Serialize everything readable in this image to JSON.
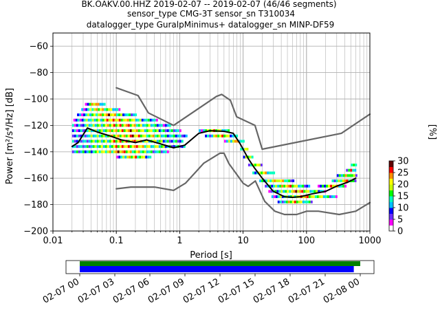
{
  "title_lines": [
    "BK.OAKV.00.HHZ   2019-02-07 -- 2019-02-07  (46/46 segments)",
    "sensor_type CMG-3T sensor_sn T310034",
    "datalogger_type GuralpMinimus+ datalogger_sn MINP-DF59"
  ],
  "chart_data": {
    "type": "heatmap",
    "xlabel": "Period [s]",
    "ylabel": "Power [m²/s⁴/Hz] [dB]",
    "x_scale": "log",
    "xlim": [
      0.01,
      1000
    ],
    "ylim": [
      -200,
      -50
    ],
    "x_tick_labels": [
      "0.01",
      "0.1",
      "1",
      "10",
      "100",
      "1000"
    ],
    "y_ticks": [
      -200,
      -180,
      -160,
      -140,
      -120,
      -100,
      -80,
      -60
    ],
    "grid": true,
    "colorbar": {
      "label": "[%]",
      "range": [
        0,
        30
      ],
      "ticks": [
        0,
        5,
        10,
        15,
        20,
        25,
        30
      ],
      "colors": [
        "#ffffff",
        "#ff00ff",
        "#6d2dff",
        "#0000ff",
        "#00bfff",
        "#00ffc0",
        "#00ff00",
        "#c8ff00",
        "#ffff00",
        "#ff9000",
        "#ff0000",
        "#600000"
      ]
    },
    "series": [
      {
        "role": "noise-model-high",
        "color": "#666666",
        "x": [
          0.1,
          0.22,
          0.32,
          0.8,
          3.8,
          4.6,
          6.3,
          7.9,
          15.4,
          20,
          354.8,
          1000
        ],
        "y": [
          -91.5,
          -97.4,
          -110.5,
          -120,
          -98,
          -96.5,
          -101,
          -113.5,
          -120,
          -138,
          -126,
          -111.5
        ]
      },
      {
        "role": "noise-model-low",
        "color": "#666666",
        "x": [
          0.1,
          0.17,
          0.4,
          0.8,
          1.24,
          2.4,
          4.3,
          5,
          6,
          10,
          12,
          15.6,
          21.9,
          31.6,
          45,
          70,
          101,
          154,
          328,
          600,
          1000
        ],
        "y": [
          -168,
          -166.7,
          -166.7,
          -169.2,
          -163.7,
          -148.6,
          -141.1,
          -141.1,
          -149,
          -163.8,
          -166.2,
          -162.1,
          -177.5,
          -185,
          -187.5,
          -187.5,
          -185,
          -185,
          -187.5,
          -185,
          -178.5
        ]
      },
      {
        "role": "mode",
        "color": "#000000",
        "x": [
          0.02,
          0.025,
          0.03,
          0.035,
          0.05,
          0.08,
          0.12,
          0.2,
          0.3,
          0.5,
          0.8,
          1.2,
          2,
          3,
          5,
          7,
          9,
          12,
          15,
          20,
          30,
          45,
          60,
          80,
          120,
          200,
          300,
          450,
          600
        ],
        "y": [
          -136,
          -133,
          -127,
          -122,
          -125,
          -128,
          -131,
          -133,
          -131,
          -134,
          -137,
          -135,
          -126,
          -124,
          -124.5,
          -126,
          -134,
          -145,
          -152,
          -160,
          -170,
          -174,
          -174.5,
          -174,
          -172,
          -170,
          -166,
          -163,
          -160
        ]
      }
    ],
    "heatmap_rows": [
      {
        "y": -104,
        "x": [
          0.032,
          0.065
        ]
      },
      {
        "y": -108,
        "x": [
          0.028,
          0.11
        ]
      },
      {
        "y": -112,
        "x": [
          0.024,
          0.2
        ]
      },
      {
        "y": -116,
        "x": [
          0.021,
          0.45
        ]
      },
      {
        "y": -120,
        "x": [
          0.02,
          0.7
        ]
      },
      {
        "y": -124,
        "x": [
          0.02,
          1.0
        ]
      },
      {
        "y": -128,
        "x": [
          0.02,
          1.3
        ]
      },
      {
        "y": -132,
        "x": [
          0.02,
          1.1
        ]
      },
      {
        "y": -136,
        "x": [
          0.02,
          1.2
        ]
      },
      {
        "y": -140,
        "x": [
          0.02,
          0.65
        ]
      },
      {
        "y": -144,
        "x": [
          0.1,
          0.35
        ]
      },
      {
        "y": -124,
        "x": [
          2,
          6
        ]
      },
      {
        "y": -128,
        "x": [
          2.5,
          8
        ]
      },
      {
        "y": -132,
        "x": [
          5,
          10
        ]
      },
      {
        "y": -138,
        "x": [
          9,
          12
        ]
      },
      {
        "y": -144,
        "x": [
          10,
          14
        ]
      },
      {
        "y": -150,
        "x": [
          12,
          20
        ]
      },
      {
        "y": -156,
        "x": [
          14,
          30
        ]
      },
      {
        "y": -162,
        "x": [
          18,
          60
        ]
      },
      {
        "y": -166,
        "x": [
          22,
          110
        ]
      },
      {
        "y": -170,
        "x": [
          25,
          200
        ]
      },
      {
        "y": -174,
        "x": [
          28,
          300
        ]
      },
      {
        "y": -178,
        "x": [
          35,
          120
        ]
      },
      {
        "y": -166,
        "x": [
          150,
          420
        ]
      },
      {
        "y": -162,
        "x": [
          250,
          600
        ]
      },
      {
        "y": -158,
        "x": [
          300,
          600
        ]
      },
      {
        "y": -154,
        "x": [
          420,
          600
        ]
      },
      {
        "y": -150,
        "x": [
          500,
          600
        ]
      }
    ]
  },
  "timeline": {
    "tick_labels": [
      "02-07 00",
      "02-07 03",
      "02-07 06",
      "02-07 09",
      "02-07 12",
      "02-07 15",
      "02-07 18",
      "02-07 21",
      "02-08 00"
    ],
    "bars": [
      {
        "role": "data-coverage",
        "color": "#008000"
      },
      {
        "role": "psd-coverage",
        "color": "#0000ff"
      }
    ]
  }
}
